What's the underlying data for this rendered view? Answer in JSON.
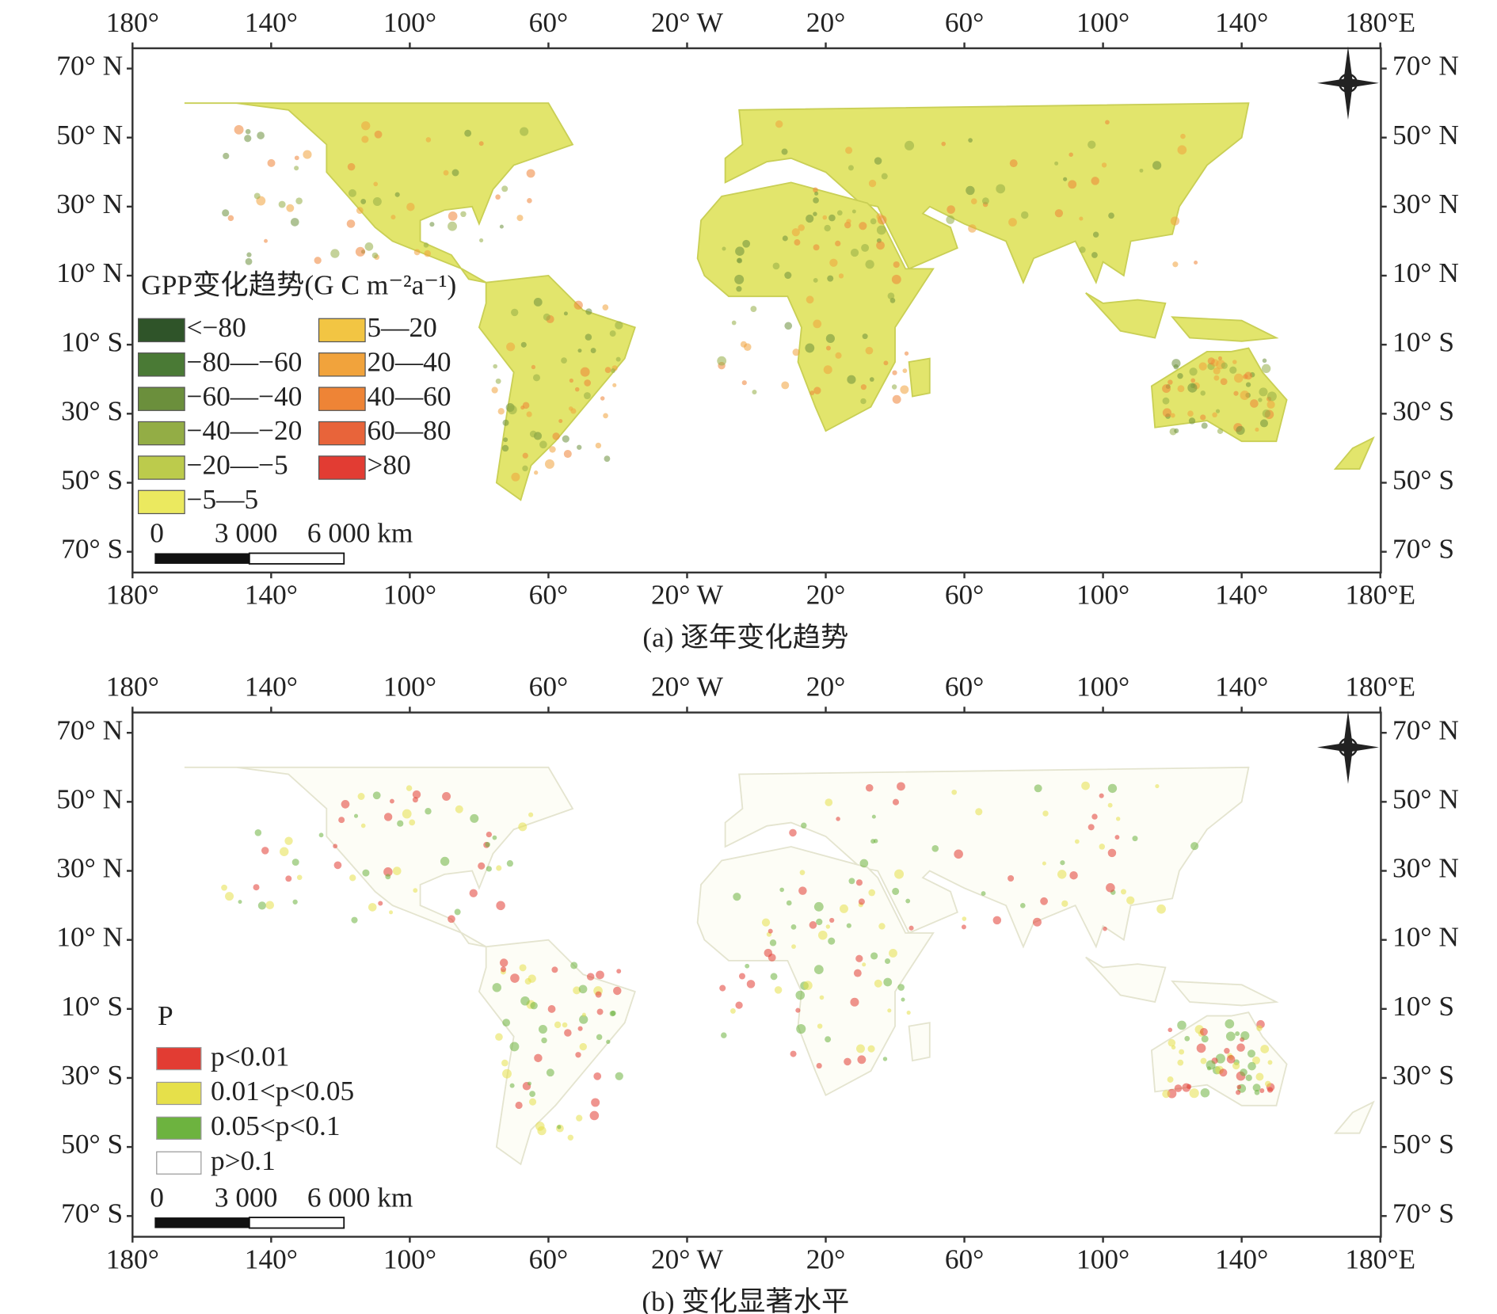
{
  "panels": [
    {
      "caption": "(a) 逐年变化趋势",
      "legend": {
        "title": "GPP变化趋势(G C m⁻²a⁻¹)",
        "items": [
          {
            "label": "<−80",
            "color": "#2f5429"
          },
          {
            "label": "−80—−60",
            "color": "#4a7a35"
          },
          {
            "label": "−60—−40",
            "color": "#6b8f3c"
          },
          {
            "label": "−40—−20",
            "color": "#93ad45"
          },
          {
            "label": "−20—−5",
            "color": "#bccb4c"
          },
          {
            "label": "−5—5",
            "color": "#ebe95f"
          },
          {
            "label": "5—20",
            "color": "#f2c543"
          },
          {
            "label": "20—40",
            "color": "#f1a33c"
          },
          {
            "label": "40—60",
            "color": "#ee8436"
          },
          {
            "label": "60—80",
            "color": "#e8643a"
          },
          {
            "label": ">80",
            "color": "#e23c33"
          }
        ]
      }
    },
    {
      "caption": "(b) 变化显著水平",
      "legend": {
        "title": "P",
        "items": [
          {
            "label": "p<0.01",
            "color": "#e23c33"
          },
          {
            "label": "0.01<p<0.05",
            "color": "#e6e04a"
          },
          {
            "label": "0.05<p<0.1",
            "color": "#6db33f"
          },
          {
            "label": "p>0.1",
            "color": "#ffffff"
          }
        ]
      }
    }
  ],
  "lon_labels": [
    "180°",
    "140°",
    "100°",
    "60°",
    "20° W",
    "20°",
    "60°",
    "100°",
    "140°",
    "180°E"
  ],
  "lat_labels": [
    "70° N",
    "50° N",
    "30° N",
    "10° N",
    "10° S",
    "30° S",
    "50° S",
    "70° S"
  ],
  "scale_bar": {
    "labels": [
      "0",
      "3 000",
      "6 000 km"
    ]
  }
}
